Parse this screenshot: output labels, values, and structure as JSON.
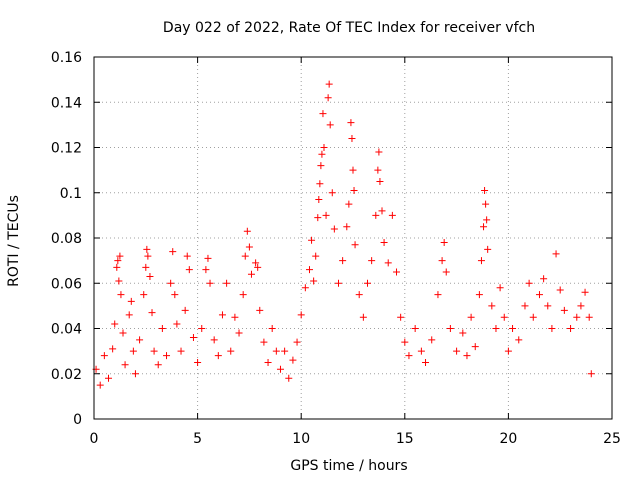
{
  "chart_data": {
    "type": "scatter",
    "title": "Day 022 of 2022, Rate Of TEC Index for receiver vfch",
    "xlabel": "GPS time / hours",
    "ylabel": "ROTI / TECUs",
    "xlim": [
      0,
      25
    ],
    "ylim": [
      0,
      0.16
    ],
    "xticks": [
      0,
      5,
      10,
      15,
      20,
      25
    ],
    "xtick_labels": [
      "0",
      "5",
      "10",
      "15",
      "20",
      "25"
    ],
    "yticks": [
      0,
      0.02,
      0.04,
      0.06,
      0.08,
      0.1,
      0.12,
      0.14,
      0.16
    ],
    "ytick_labels": [
      "0",
      "0.02",
      "0.04",
      "0.06",
      "0.08",
      "0.1",
      "0.12",
      "0.14",
      "0.16"
    ],
    "grid": true,
    "marker": "+",
    "marker_color": "#ff0000",
    "series": [
      {
        "name": "ROTI",
        "points": [
          [
            0.1,
            0.022
          ],
          [
            0.3,
            0.015
          ],
          [
            0.5,
            0.028
          ],
          [
            0.7,
            0.018
          ],
          [
            0.9,
            0.031
          ],
          [
            1.0,
            0.042
          ],
          [
            1.1,
            0.067
          ],
          [
            1.15,
            0.07
          ],
          [
            1.2,
            0.061
          ],
          [
            1.25,
            0.072
          ],
          [
            1.3,
            0.055
          ],
          [
            1.4,
            0.038
          ],
          [
            1.5,
            0.024
          ],
          [
            1.7,
            0.046
          ],
          [
            1.8,
            0.052
          ],
          [
            1.9,
            0.03
          ],
          [
            2.0,
            0.02
          ],
          [
            2.2,
            0.035
          ],
          [
            2.4,
            0.055
          ],
          [
            2.5,
            0.067
          ],
          [
            2.55,
            0.075
          ],
          [
            2.6,
            0.072
          ],
          [
            2.7,
            0.063
          ],
          [
            2.8,
            0.047
          ],
          [
            2.9,
            0.03
          ],
          [
            3.1,
            0.024
          ],
          [
            3.3,
            0.04
          ],
          [
            3.5,
            0.028
          ],
          [
            3.7,
            0.06
          ],
          [
            3.8,
            0.074
          ],
          [
            3.9,
            0.055
          ],
          [
            4.0,
            0.042
          ],
          [
            4.2,
            0.03
          ],
          [
            4.4,
            0.048
          ],
          [
            4.5,
            0.072
          ],
          [
            4.6,
            0.066
          ],
          [
            4.8,
            0.036
          ],
          [
            5.0,
            0.025
          ],
          [
            5.2,
            0.04
          ],
          [
            5.4,
            0.066
          ],
          [
            5.5,
            0.071
          ],
          [
            5.6,
            0.06
          ],
          [
            5.8,
            0.035
          ],
          [
            6.0,
            0.028
          ],
          [
            6.2,
            0.046
          ],
          [
            6.4,
            0.06
          ],
          [
            6.6,
            0.03
          ],
          [
            6.8,
            0.045
          ],
          [
            7.0,
            0.038
          ],
          [
            7.2,
            0.055
          ],
          [
            7.3,
            0.072
          ],
          [
            7.4,
            0.083
          ],
          [
            7.5,
            0.076
          ],
          [
            7.6,
            0.064
          ],
          [
            7.8,
            0.069
          ],
          [
            7.9,
            0.067
          ],
          [
            8.0,
            0.048
          ],
          [
            8.2,
            0.034
          ],
          [
            8.4,
            0.025
          ],
          [
            8.6,
            0.04
          ],
          [
            8.8,
            0.03
          ],
          [
            9.0,
            0.022
          ],
          [
            9.2,
            0.03
          ],
          [
            9.4,
            0.018
          ],
          [
            9.6,
            0.026
          ],
          [
            9.8,
            0.034
          ],
          [
            10.0,
            0.046
          ],
          [
            10.2,
            0.058
          ],
          [
            10.4,
            0.066
          ],
          [
            10.5,
            0.079
          ],
          [
            10.6,
            0.061
          ],
          [
            10.7,
            0.072
          ],
          [
            10.8,
            0.089
          ],
          [
            10.85,
            0.097
          ],
          [
            10.9,
            0.104
          ],
          [
            10.95,
            0.112
          ],
          [
            11.0,
            0.117
          ],
          [
            11.05,
            0.135
          ],
          [
            11.1,
            0.12
          ],
          [
            11.2,
            0.09
          ],
          [
            11.3,
            0.142
          ],
          [
            11.35,
            0.148
          ],
          [
            11.4,
            0.13
          ],
          [
            11.5,
            0.1
          ],
          [
            11.6,
            0.084
          ],
          [
            11.8,
            0.06
          ],
          [
            12.0,
            0.07
          ],
          [
            12.2,
            0.085
          ],
          [
            12.3,
            0.095
          ],
          [
            12.4,
            0.131
          ],
          [
            12.45,
            0.124
          ],
          [
            12.5,
            0.11
          ],
          [
            12.55,
            0.101
          ],
          [
            12.6,
            0.077
          ],
          [
            12.8,
            0.055
          ],
          [
            13.0,
            0.045
          ],
          [
            13.2,
            0.06
          ],
          [
            13.4,
            0.07
          ],
          [
            13.6,
            0.09
          ],
          [
            13.7,
            0.11
          ],
          [
            13.75,
            0.118
          ],
          [
            13.8,
            0.105
          ],
          [
            13.9,
            0.092
          ],
          [
            14.0,
            0.078
          ],
          [
            14.2,
            0.069
          ],
          [
            14.4,
            0.09
          ],
          [
            14.6,
            0.065
          ],
          [
            14.8,
            0.045
          ],
          [
            15.0,
            0.034
          ],
          [
            15.2,
            0.028
          ],
          [
            15.5,
            0.04
          ],
          [
            15.8,
            0.03
          ],
          [
            16.0,
            0.025
          ],
          [
            16.3,
            0.035
          ],
          [
            16.6,
            0.055
          ],
          [
            16.8,
            0.07
          ],
          [
            16.9,
            0.078
          ],
          [
            17.0,
            0.065
          ],
          [
            17.2,
            0.04
          ],
          [
            17.5,
            0.03
          ],
          [
            17.8,
            0.038
          ],
          [
            18.0,
            0.028
          ],
          [
            18.2,
            0.045
          ],
          [
            18.4,
            0.032
          ],
          [
            18.6,
            0.055
          ],
          [
            18.7,
            0.07
          ],
          [
            18.8,
            0.085
          ],
          [
            18.85,
            0.101
          ],
          [
            18.9,
            0.095
          ],
          [
            18.95,
            0.088
          ],
          [
            19.0,
            0.075
          ],
          [
            19.2,
            0.05
          ],
          [
            19.4,
            0.04
          ],
          [
            19.6,
            0.058
          ],
          [
            19.8,
            0.045
          ],
          [
            20.0,
            0.03
          ],
          [
            20.2,
            0.04
          ],
          [
            20.5,
            0.035
          ],
          [
            20.8,
            0.05
          ],
          [
            21.0,
            0.06
          ],
          [
            21.2,
            0.045
          ],
          [
            21.5,
            0.055
          ],
          [
            21.7,
            0.062
          ],
          [
            21.9,
            0.05
          ],
          [
            22.1,
            0.04
          ],
          [
            22.3,
            0.073
          ],
          [
            22.5,
            0.057
          ],
          [
            22.7,
            0.048
          ],
          [
            23.0,
            0.04
          ],
          [
            23.3,
            0.045
          ],
          [
            23.5,
            0.05
          ],
          [
            23.7,
            0.056
          ],
          [
            23.9,
            0.045
          ],
          [
            24.0,
            0.02
          ]
        ]
      }
    ]
  }
}
